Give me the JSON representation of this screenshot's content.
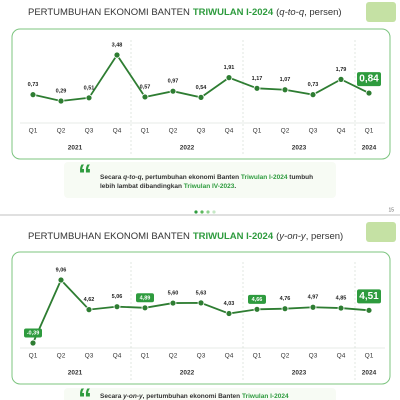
{
  "chart_data": [
    {
      "type": "line",
      "title": [
        {
          "text": "PERTUMBUHAN EKONOMI BANTEN",
          "style": "main"
        },
        {
          "text": "TRIWULAN I-2024",
          "style": "accent"
        },
        {
          "text": "(",
          "style": "note"
        },
        {
          "text": "q-to-q",
          "style": "italic"
        },
        {
          "text": ", persen)",
          "style": "note"
        }
      ],
      "categories": [
        "Q1",
        "Q2",
        "Q3",
        "Q4",
        "Q1",
        "Q2",
        "Q3",
        "Q4",
        "Q1",
        "Q2",
        "Q3",
        "Q4",
        "Q1"
      ],
      "groups": [
        {
          "label": "2021",
          "count": 4
        },
        {
          "label": "2022",
          "count": 4
        },
        {
          "label": "2023",
          "count": 4
        },
        {
          "label": "2024",
          "count": 1
        }
      ],
      "values": [
        0.73,
        0.29,
        0.51,
        3.48,
        0.57,
        0.97,
        0.54,
        1.91,
        1.17,
        1.07,
        0.73,
        1.79,
        0.84
      ],
      "value_labels": [
        "0,73",
        "0,29",
        "0,51",
        "3,48",
        "0,57",
        "0,97",
        "0,54",
        "1,91",
        "1,17",
        "1,07",
        "0,73",
        "1,79",
        "0,84"
      ],
      "boxed": [
        12
      ],
      "color": "#2e7d32"
    },
    {
      "type": "line",
      "title": [
        {
          "text": "PERTUMBUHAN EKONOMI BANTEN",
          "style": "main"
        },
        {
          "text": "TRIWULAN I-2024",
          "style": "accent"
        },
        {
          "text": "(",
          "style": "note"
        },
        {
          "text": "y-on-y",
          "style": "italic"
        },
        {
          "text": ", persen)",
          "style": "note"
        }
      ],
      "categories": [
        "Q1",
        "Q2",
        "Q3",
        "Q4",
        "Q1",
        "Q2",
        "Q3",
        "Q4",
        "Q1",
        "Q2",
        "Q3",
        "Q4",
        "Q1"
      ],
      "groups": [
        {
          "label": "2021",
          "count": 4
        },
        {
          "label": "2022",
          "count": 4
        },
        {
          "label": "2023",
          "count": 4
        },
        {
          "label": "2024",
          "count": 1
        }
      ],
      "values": [
        -0.39,
        9.06,
        4.62,
        5.06,
        4.89,
        5.6,
        5.63,
        4.03,
        4.66,
        4.76,
        4.97,
        4.85,
        4.51
      ],
      "value_labels": [
        "-0,39",
        "9,06",
        "4,62",
        "5,06",
        "4,89",
        "5,60",
        "5,63",
        "4,03",
        "4,66",
        "4,76",
        "4,97",
        "4,85",
        "4,51"
      ],
      "boxed": [
        0,
        4,
        8,
        12
      ],
      "color": "#2e7d32"
    }
  ],
  "quotes": [
    [
      {
        "text": "Secara ",
        "style": "plain"
      },
      {
        "text": "q-to-q",
        "style": "italic"
      },
      {
        "text": ", pertumbuhan ekonomi Banten ",
        "style": "plain"
      },
      {
        "text": "Triwulan I-2024",
        "style": "accent"
      },
      {
        "text": " tumbuh lebih lambat dibandingkan ",
        "style": "plain"
      },
      {
        "text": "Triwulan IV-2023",
        "style": "accent"
      },
      {
        "text": ".",
        "style": "plain"
      }
    ],
    [
      {
        "text": "Secara ",
        "style": "plain"
      },
      {
        "text": "y-on-y",
        "style": "italic"
      },
      {
        "text": ", pertumbuhan ekonomi Banten ",
        "style": "plain"
      },
      {
        "text": "Triwulan I-2024",
        "style": "accent"
      }
    ]
  ],
  "page_number": "15"
}
